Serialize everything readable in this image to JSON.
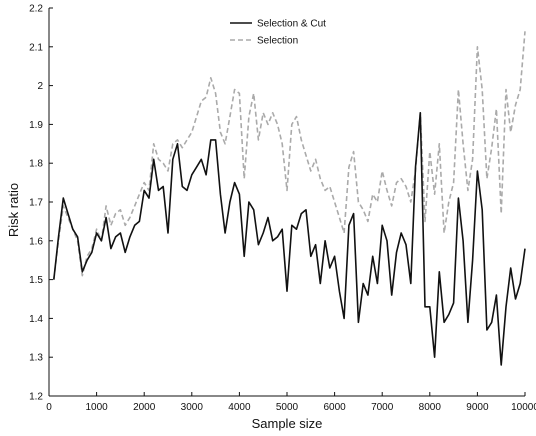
{
  "chart_data": {
    "type": "line",
    "title": "",
    "xlabel": "Sample size",
    "ylabel": "Risk ratio",
    "xlim": [
      0,
      10000
    ],
    "ylim": [
      1.2,
      2.2
    ],
    "xticks": [
      0,
      1000,
      2000,
      3000,
      4000,
      5000,
      6000,
      7000,
      8000,
      9000,
      10000
    ],
    "yticks": [
      1.2,
      1.3,
      1.4,
      1.5,
      1.6,
      1.7,
      1.8,
      1.9,
      2.0,
      2.1,
      2.2
    ],
    "xtick_labels": [
      "0",
      "1000",
      "2000",
      "3000",
      "4000",
      "5000",
      "6000",
      "7000",
      "8000",
      "9000",
      "10000"
    ],
    "ytick_labels": [
      "1.2",
      "1.3",
      "1.4",
      "1.5",
      "1.6",
      "1.7",
      "1.8",
      "1.9",
      "2",
      "2.1",
      "2.2"
    ],
    "grid": false,
    "legend_position": "top-center",
    "x": [
      100,
      200,
      300,
      400,
      500,
      600,
      700,
      800,
      900,
      1000,
      1100,
      1200,
      1300,
      1400,
      1500,
      1600,
      1700,
      1800,
      1900,
      2000,
      2100,
      2200,
      2300,
      2400,
      2500,
      2600,
      2700,
      2800,
      2900,
      3000,
      3100,
      3200,
      3300,
      3400,
      3500,
      3600,
      3700,
      3800,
      3900,
      4000,
      4100,
      4200,
      4300,
      4400,
      4500,
      4600,
      4700,
      4800,
      4900,
      5000,
      5100,
      5200,
      5300,
      5400,
      5500,
      5600,
      5700,
      5800,
      5900,
      6000,
      6100,
      6200,
      6300,
      6400,
      6500,
      6600,
      6700,
      6800,
      6900,
      7000,
      7100,
      7200,
      7300,
      7400,
      7500,
      7600,
      7700,
      7800,
      7900,
      8000,
      8100,
      8200,
      8300,
      8400,
      8500,
      8600,
      8700,
      8800,
      8900,
      9000,
      9100,
      9200,
      9300,
      9400,
      9500,
      9600,
      9700,
      9800,
      9900,
      10000
    ],
    "series": [
      {
        "name": "Selection & Cut",
        "color": "#111111",
        "dash": "solid",
        "values": [
          1.5,
          1.61,
          1.71,
          1.67,
          1.63,
          1.61,
          1.52,
          1.55,
          1.57,
          1.62,
          1.6,
          1.66,
          1.58,
          1.61,
          1.62,
          1.57,
          1.61,
          1.64,
          1.65,
          1.73,
          1.71,
          1.81,
          1.73,
          1.74,
          1.62,
          1.81,
          1.85,
          1.74,
          1.73,
          1.77,
          1.79,
          1.81,
          1.77,
          1.86,
          1.86,
          1.72,
          1.62,
          1.7,
          1.75,
          1.72,
          1.56,
          1.7,
          1.68,
          1.59,
          1.62,
          1.66,
          1.6,
          1.61,
          1.63,
          1.47,
          1.64,
          1.63,
          1.67,
          1.68,
          1.56,
          1.59,
          1.49,
          1.6,
          1.53,
          1.56,
          1.47,
          1.4,
          1.64,
          1.67,
          1.39,
          1.49,
          1.46,
          1.56,
          1.49,
          1.64,
          1.6,
          1.46,
          1.57,
          1.62,
          1.59,
          1.49,
          1.79,
          1.93,
          1.43,
          1.43,
          1.3,
          1.52,
          1.39,
          1.41,
          1.44,
          1.71,
          1.6,
          1.39,
          1.55,
          1.78,
          1.68,
          1.37,
          1.39,
          1.46,
          1.28,
          1.43,
          1.53,
          1.45,
          1.49,
          1.58
        ]
      },
      {
        "name": "Selection",
        "color": "#aaaaaa",
        "dash": "dashed",
        "values": [
          1.5,
          1.6,
          1.69,
          1.66,
          1.63,
          1.6,
          1.51,
          1.56,
          1.58,
          1.63,
          1.6,
          1.69,
          1.64,
          1.67,
          1.68,
          1.64,
          1.66,
          1.69,
          1.72,
          1.75,
          1.73,
          1.85,
          1.81,
          1.8,
          1.78,
          1.85,
          1.86,
          1.84,
          1.86,
          1.88,
          1.92,
          1.96,
          1.97,
          2.02,
          1.98,
          1.88,
          1.85,
          1.92,
          1.99,
          1.98,
          1.76,
          1.92,
          1.98,
          1.86,
          1.93,
          1.9,
          1.93,
          1.9,
          1.85,
          1.73,
          1.9,
          1.92,
          1.86,
          1.82,
          1.78,
          1.81,
          1.76,
          1.73,
          1.74,
          1.7,
          1.66,
          1.62,
          1.79,
          1.83,
          1.7,
          1.68,
          1.65,
          1.72,
          1.7,
          1.78,
          1.73,
          1.69,
          1.75,
          1.76,
          1.74,
          1.7,
          1.78,
          1.93,
          1.65,
          1.83,
          1.72,
          1.85,
          1.62,
          1.7,
          1.75,
          1.99,
          1.85,
          1.73,
          1.81,
          2.1,
          1.99,
          1.76,
          1.84,
          1.94,
          1.67,
          1.99,
          1.88,
          1.95,
          1.99,
          2.14
        ]
      }
    ]
  }
}
